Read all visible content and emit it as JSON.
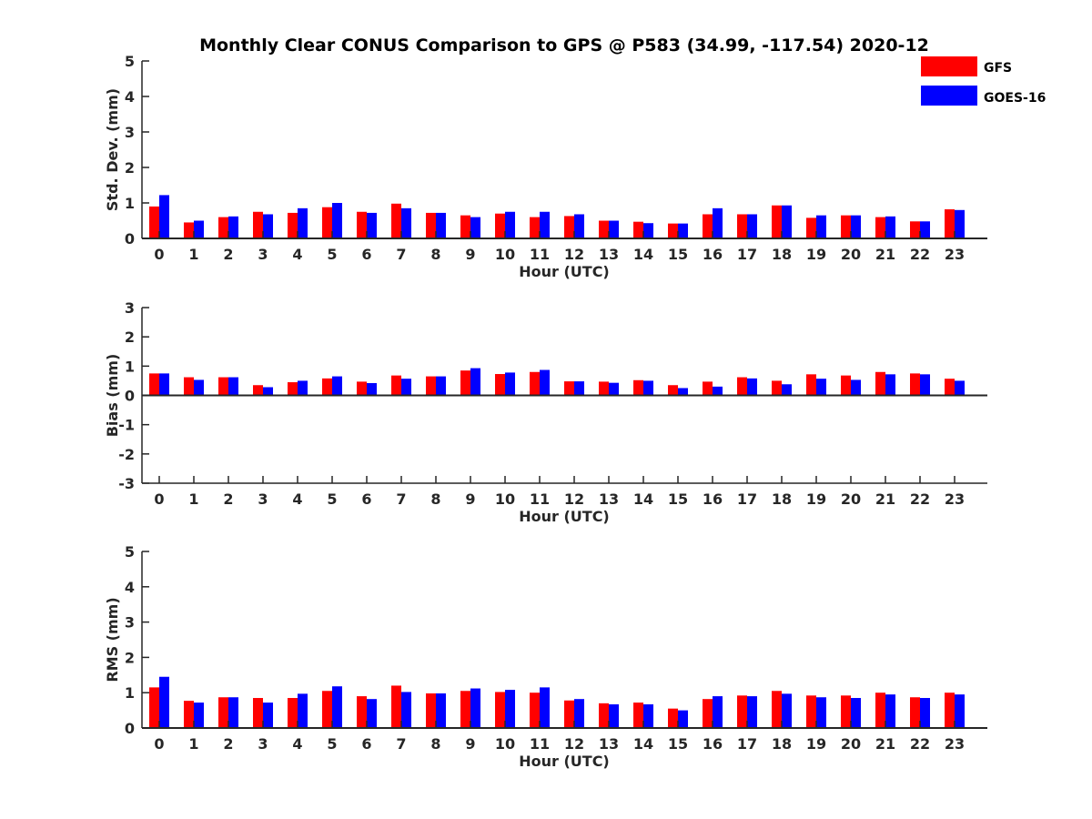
{
  "title": "Monthly Clear CONUS Comparison to GPS @ P583 (34.99, -117.54) 2020-12",
  "colors": {
    "GFS": "#ff0000",
    "GOES-16": "#0000ff",
    "axis": "#262626"
  },
  "legend": {
    "position": "top-right",
    "entries": [
      "GFS",
      "GOES-16"
    ]
  },
  "chart_data": [
    {
      "type": "bar",
      "xlabel": "Hour (UTC)",
      "ylabel": "Std. Dev. (mm)",
      "ylim": [
        0,
        5
      ],
      "yticks": [
        0,
        1,
        2,
        3,
        4,
        5
      ],
      "categories": [
        "0",
        "1",
        "2",
        "3",
        "4",
        "5",
        "6",
        "7",
        "8",
        "9",
        "10",
        "11",
        "12",
        "13",
        "14",
        "15",
        "16",
        "17",
        "18",
        "19",
        "20",
        "21",
        "22",
        "23"
      ],
      "series": [
        {
          "name": "GFS",
          "values": [
            0.9,
            0.45,
            0.6,
            0.75,
            0.72,
            0.88,
            0.75,
            0.98,
            0.72,
            0.65,
            0.7,
            0.6,
            0.63,
            0.5,
            0.47,
            0.42,
            0.68,
            0.68,
            0.93,
            0.58,
            0.65,
            0.6,
            0.48,
            0.82
          ]
        },
        {
          "name": "GOES-16",
          "values": [
            1.22,
            0.5,
            0.62,
            0.68,
            0.85,
            1.0,
            0.72,
            0.85,
            0.72,
            0.6,
            0.75,
            0.75,
            0.68,
            0.5,
            0.43,
            0.42,
            0.85,
            0.68,
            0.93,
            0.65,
            0.65,
            0.62,
            0.48,
            0.8
          ]
        }
      ]
    },
    {
      "type": "bar",
      "xlabel": "Hour (UTC)",
      "ylabel": "Bias (mm)",
      "ylim": [
        -3,
        3
      ],
      "yticks": [
        -3,
        -2,
        -1,
        0,
        1,
        2,
        3
      ],
      "categories": [
        "0",
        "1",
        "2",
        "3",
        "4",
        "5",
        "6",
        "7",
        "8",
        "9",
        "10",
        "11",
        "12",
        "13",
        "14",
        "15",
        "16",
        "17",
        "18",
        "19",
        "20",
        "21",
        "22",
        "23"
      ],
      "series": [
        {
          "name": "GFS",
          "values": [
            0.75,
            0.62,
            0.62,
            0.35,
            0.45,
            0.58,
            0.47,
            0.68,
            0.65,
            0.85,
            0.73,
            0.8,
            0.48,
            0.47,
            0.52,
            0.35,
            0.47,
            0.62,
            0.5,
            0.72,
            0.68,
            0.8,
            0.75,
            0.57
          ]
        },
        {
          "name": "GOES-16",
          "values": [
            0.75,
            0.53,
            0.62,
            0.28,
            0.5,
            0.65,
            0.42,
            0.57,
            0.65,
            0.93,
            0.78,
            0.87,
            0.48,
            0.43,
            0.5,
            0.25,
            0.3,
            0.58,
            0.38,
            0.57,
            0.53,
            0.72,
            0.72,
            0.5
          ]
        }
      ]
    },
    {
      "type": "bar",
      "xlabel": "Hour (UTC)",
      "ylabel": "RMS (mm)",
      "ylim": [
        0,
        5
      ],
      "yticks": [
        0,
        1,
        2,
        3,
        4,
        5
      ],
      "categories": [
        "0",
        "1",
        "2",
        "3",
        "4",
        "5",
        "6",
        "7",
        "8",
        "9",
        "10",
        "11",
        "12",
        "13",
        "14",
        "15",
        "16",
        "17",
        "18",
        "19",
        "20",
        "21",
        "22",
        "23"
      ],
      "series": [
        {
          "name": "GFS",
          "values": [
            1.15,
            0.77,
            0.87,
            0.85,
            0.85,
            1.05,
            0.9,
            1.2,
            0.98,
            1.05,
            1.02,
            1.0,
            0.78,
            0.7,
            0.72,
            0.55,
            0.82,
            0.92,
            1.05,
            0.92,
            0.92,
            1.0,
            0.87,
            1.0
          ]
        },
        {
          "name": "GOES-16",
          "values": [
            1.45,
            0.72,
            0.87,
            0.72,
            0.97,
            1.18,
            0.82,
            1.02,
            0.98,
            1.12,
            1.08,
            1.15,
            0.82,
            0.67,
            0.67,
            0.5,
            0.9,
            0.9,
            0.97,
            0.87,
            0.85,
            0.95,
            0.85,
            0.95
          ]
        }
      ]
    }
  ]
}
